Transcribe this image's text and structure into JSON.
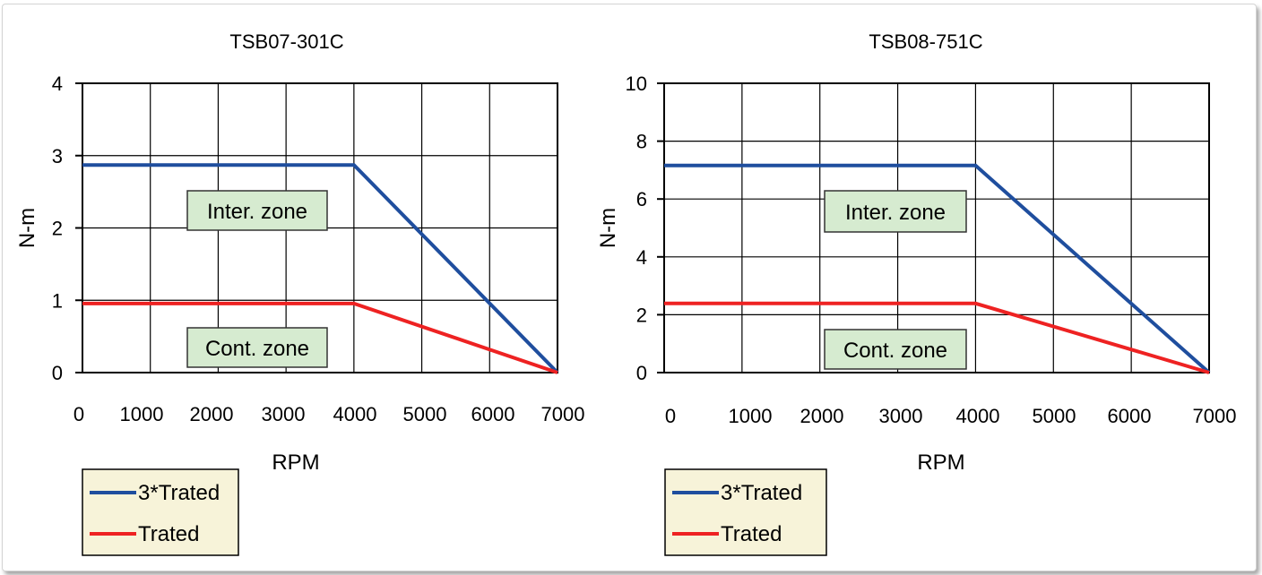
{
  "chart_data": [
    {
      "type": "line",
      "title": "TSB07-301C",
      "xlabel": "RPM",
      "ylabel": "N-m",
      "xlim": [
        0,
        7000
      ],
      "ylim": [
        0,
        4
      ],
      "xticks": [
        0,
        1000,
        2000,
        3000,
        4000,
        5000,
        6000,
        7000
      ],
      "yticks": [
        0,
        1,
        2,
        3,
        4
      ],
      "grid": true,
      "legend_position": "bottom-left",
      "annotations": [
        "Inter. zone",
        "Cont. zone"
      ],
      "series": [
        {
          "name": "3*Trated",
          "color": "#1f4e9e",
          "x": [
            0,
            4000,
            7000
          ],
          "y": [
            2.87,
            2.87,
            0
          ]
        },
        {
          "name": "Trated",
          "color": "#ee2222",
          "x": [
            0,
            4000,
            7000
          ],
          "y": [
            0.955,
            0.955,
            0
          ]
        }
      ]
    },
    {
      "type": "line",
      "title": "TSB08-751C",
      "xlabel": "RPM",
      "ylabel": "N-m",
      "xlim": [
        0,
        7000
      ],
      "ylim": [
        0,
        10
      ],
      "xticks": [
        0,
        1000,
        2000,
        3000,
        4000,
        5000,
        6000,
        7000
      ],
      "yticks": [
        0,
        2,
        4,
        6,
        8,
        10
      ],
      "grid": true,
      "legend_position": "bottom-left",
      "annotations": [
        "Inter. zone",
        "Cont. zone"
      ],
      "series": [
        {
          "name": "3*Trated",
          "color": "#1f4e9e",
          "x": [
            0,
            4000,
            7000
          ],
          "y": [
            7.16,
            7.16,
            0
          ]
        },
        {
          "name": "Trated",
          "color": "#ee2222",
          "x": [
            0,
            4000,
            7000
          ],
          "y": [
            2.39,
            2.39,
            0
          ]
        }
      ]
    }
  ]
}
